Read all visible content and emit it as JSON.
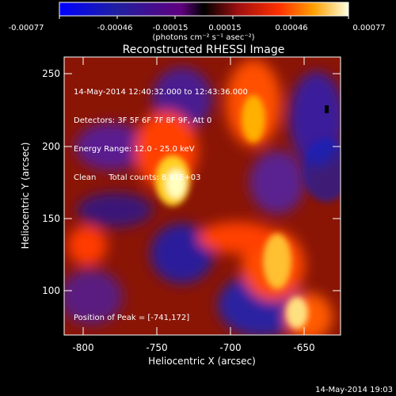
{
  "colorbar": {
    "tick_labels": [
      "-0.00077",
      "-0.00046",
      "-0.00015",
      "0.00015",
      "0.00046",
      "0.00077"
    ],
    "units_label": "(photons cm⁻² s⁻¹ asec⁻²)"
  },
  "plot": {
    "title": "Reconstructed RHESSI Image",
    "xlabel": "Heliocentric X (arcsec)",
    "ylabel": "Heliocentric Y (arcsec)",
    "x_ticks": [
      "-800",
      "-750",
      "-700",
      "-650"
    ],
    "y_ticks": [
      "250",
      "200",
      "150",
      "100"
    ],
    "info_lines": [
      "14-May-2014 12:40:32.000 to 12:43:36.000",
      "Detectors: 3F 5F 6F 7F 8F 9F, Att 0",
      "Energy Range: 12.0 - 25.0 keV",
      "Clean     Total counts: 8.91E+03"
    ],
    "peak_label": "Position of Peak = [-741,172]"
  },
  "footer_timestamp": "14-May-2014 19:03"
}
